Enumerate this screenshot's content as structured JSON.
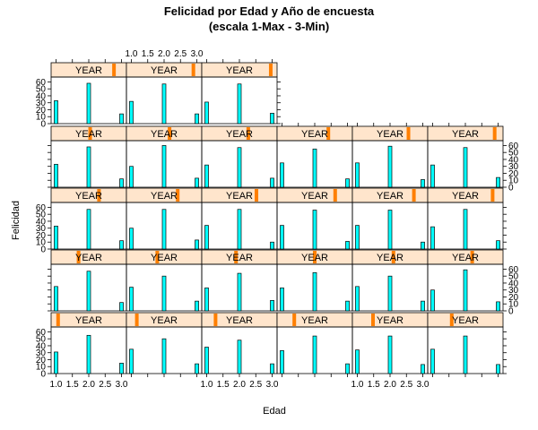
{
  "chart_data": {
    "type": "bar",
    "title": "Felicidad por Edad y Año de encuesta",
    "subtitle": "(escala 1-Max - 3-Min)",
    "xlabel": "Edad",
    "ylabel": "Felicidad",
    "strip_label": "YEAR",
    "xlim": [
      0.85,
      3.15
    ],
    "ylim": [
      0,
      67
    ],
    "x_ticks": [
      1.0,
      1.5,
      2.0,
      2.5,
      3.0
    ],
    "x_tick_labels": [
      "1.0",
      "1.5",
      "2.0",
      "2.5",
      "3.0"
    ],
    "y_ticks": [
      0,
      10,
      20,
      30,
      40,
      50,
      60
    ],
    "y_tick_labels": [
      "0",
      "10",
      "20",
      "30",
      "40",
      "50",
      "60"
    ],
    "bar_x": [
      1.0,
      2.0,
      3.0
    ],
    "panels": [
      {
        "year_level": 0.05,
        "values": [
          31,
          55,
          15
        ]
      },
      {
        "year_level": 0.1,
        "values": [
          35,
          50,
          14
        ]
      },
      {
        "year_level": 0.15,
        "values": [
          38,
          48,
          14
        ]
      },
      {
        "year_level": 0.2,
        "values": [
          33,
          54,
          14
        ]
      },
      {
        "year_level": 0.25,
        "values": [
          34,
          54,
          13
        ]
      },
      {
        "year_level": 0.3,
        "values": [
          35,
          54,
          13
        ]
      },
      {
        "year_level": 0.35,
        "values": [
          35,
          57,
          12
        ]
      },
      {
        "year_level": 0.4,
        "values": [
          34,
          50,
          14
        ]
      },
      {
        "year_level": 0.45,
        "values": [
          33,
          54,
          15
        ]
      },
      {
        "year_level": 0.5,
        "values": [
          33,
          55,
          14
        ]
      },
      {
        "year_level": 0.55,
        "values": [
          35,
          50,
          14
        ]
      },
      {
        "year_level": 0.6,
        "values": [
          30,
          59,
          13
        ]
      },
      {
        "year_level": 0.65,
        "values": [
          33,
          57,
          12
        ]
      },
      {
        "year_level": 0.7,
        "values": [
          30,
          57,
          13
        ]
      },
      {
        "year_level": 0.75,
        "values": [
          34,
          57,
          10
        ]
      },
      {
        "year_level": 0.8,
        "values": [
          34,
          56,
          11
        ]
      },
      {
        "year_level": 0.85,
        "values": [
          34,
          56,
          10
        ]
      },
      {
        "year_level": 0.9,
        "values": [
          32,
          57,
          12
        ]
      },
      {
        "year_level": 0.52,
        "values": [
          33,
          58,
          12
        ]
      },
      {
        "year_level": 0.58,
        "values": [
          30,
          60,
          13
        ]
      },
      {
        "year_level": 0.63,
        "values": [
          32,
          57,
          13
        ]
      },
      {
        "year_level": 0.7,
        "values": [
          35,
          55,
          12
        ]
      },
      {
        "year_level": 0.77,
        "values": [
          35,
          59,
          11
        ]
      },
      {
        "year_level": 0.93,
        "values": [
          32,
          57,
          14
        ]
      },
      {
        "year_level": 0.87,
        "values": [
          33,
          58,
          14
        ]
      },
      {
        "year_level": 0.93,
        "values": [
          32,
          57,
          14
        ]
      },
      {
        "year_level": 0.96,
        "values": [
          31,
          57,
          15
        ]
      }
    ],
    "colors": {
      "bar_fill": "#00ffff",
      "strip_bg": "#ffe5cc",
      "strip_marker": "#ff7f00",
      "frame": "#000000"
    }
  }
}
